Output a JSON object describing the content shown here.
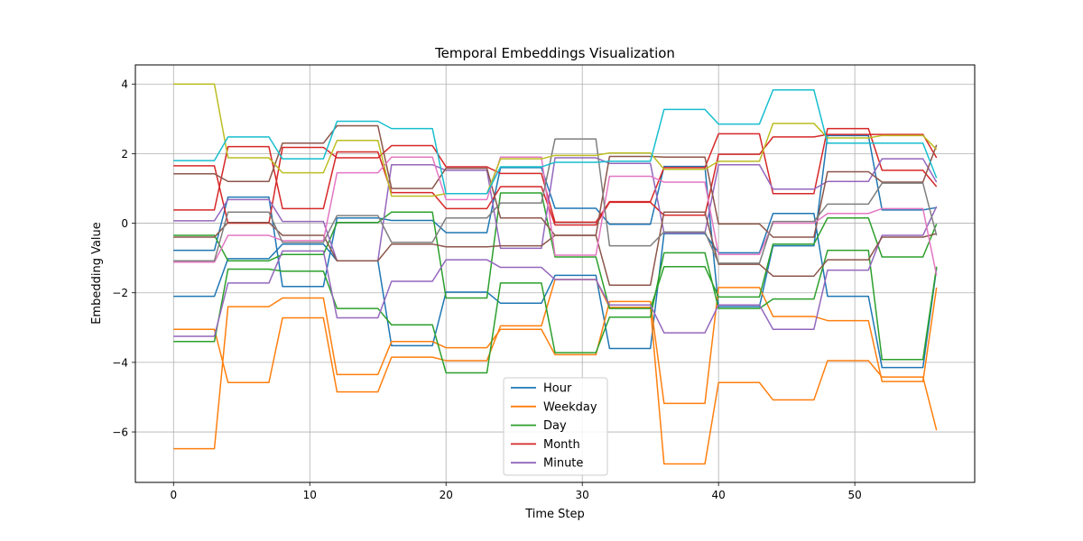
{
  "chart_data": {
    "type": "line",
    "title": "Temporal Embeddings Visualization",
    "xlabel": "Time Step",
    "ylabel": "Embedding Value",
    "xlim": [
      -2.8,
      58.8
    ],
    "ylim": [
      -7.45,
      4.55
    ],
    "xticks": [
      0,
      10,
      20,
      30,
      40,
      50
    ],
    "yticks": [
      -6,
      -4,
      -2,
      0,
      2,
      4
    ],
    "ytick_labels": [
      "−6",
      "−4",
      "−2",
      "0",
      "2",
      "4"
    ],
    "grid": true,
    "legend_position": "lower center",
    "x": [
      0,
      1,
      2,
      3,
      4,
      5,
      6,
      7,
      8,
      9,
      10,
      11,
      12,
      13,
      14,
      15,
      16,
      17,
      18,
      19,
      20,
      21,
      22,
      23,
      24,
      25,
      26,
      27,
      28,
      29,
      30,
      31,
      32,
      33,
      34,
      35,
      36,
      37,
      38,
      39,
      40,
      41,
      42,
      43,
      44,
      45,
      46,
      47,
      48,
      49,
      50,
      51,
      52,
      53,
      54,
      55,
      56
    ],
    "legend": [
      {
        "name": "Hour",
        "color": "#1f77b4"
      },
      {
        "name": "Weekday",
        "color": "#ff7f0e"
      },
      {
        "name": "Day",
        "color": "#2ca02c"
      },
      {
        "name": "Month",
        "color": "#d62728"
      },
      {
        "name": "Minute",
        "color": "#9467bd"
      }
    ],
    "series": [
      {
        "color": "#1f77b4",
        "values": [
          -0.78,
          -0.78,
          -0.78,
          -0.78,
          0.75,
          0.75,
          0.75,
          0.75,
          -1.82,
          -1.82,
          -1.82,
          -1.82,
          0.15,
          0.15,
          0.15,
          0.15,
          0.08,
          0.08,
          0.08,
          0.08,
          -0.27,
          -0.27,
          -0.27,
          -0.27,
          1.6,
          1.6,
          1.6,
          1.6,
          0.43,
          0.43,
          0.43,
          0.43,
          -0.03,
          -0.03,
          -0.03,
          -0.03,
          1.63,
          1.63,
          1.63,
          1.63,
          -2.4,
          -2.4,
          -2.4,
          -2.4,
          -0.65,
          -0.65,
          -0.65,
          -0.65,
          2.52,
          2.52,
          2.52,
          2.52,
          0.38,
          0.38,
          0.38,
          0.38,
          0.45
        ]
      },
      {
        "color": "#1f77b4",
        "values": [
          -2.1,
          -2.1,
          -2.1,
          -2.1,
          -1.02,
          -1.02,
          -1.02,
          -1.02,
          -0.6,
          -0.6,
          -0.6,
          -0.6,
          -1.08,
          -1.08,
          -1.08,
          -1.08,
          -3.52,
          -3.52,
          -3.52,
          -3.52,
          -1.98,
          -1.98,
          -1.98,
          -1.98,
          -2.3,
          -2.3,
          -2.3,
          -2.3,
          -1.5,
          -1.5,
          -1.5,
          -1.5,
          -3.6,
          -3.6,
          -3.6,
          -3.6,
          -0.3,
          -0.3,
          -0.3,
          -0.3,
          -0.85,
          -0.85,
          -0.85,
          -0.85,
          0.28,
          0.28,
          0.28,
          0.28,
          -2.1,
          -2.1,
          -2.1,
          -2.1,
          -4.15,
          -4.15,
          -4.15,
          -4.15,
          -1.3
        ]
      },
      {
        "color": "#ff7f0e",
        "values": [
          -6.48,
          -6.48,
          -6.48,
          -6.48,
          -2.4,
          -2.4,
          -2.4,
          -2.4,
          -2.15,
          -2.15,
          -2.15,
          -2.15,
          -4.35,
          -4.35,
          -4.35,
          -4.35,
          -3.4,
          -3.4,
          -3.4,
          -3.4,
          -3.58,
          -3.58,
          -3.58,
          -3.58,
          -3.05,
          -3.05,
          -3.05,
          -3.05,
          -3.78,
          -3.78,
          -3.78,
          -3.78,
          -2.25,
          -2.25,
          -2.25,
          -2.25,
          -5.18,
          -5.18,
          -5.18,
          -5.18,
          -1.85,
          -1.85,
          -1.85,
          -1.85,
          -2.68,
          -2.68,
          -2.68,
          -2.68,
          -2.8,
          -2.8,
          -2.8,
          -2.8,
          -4.55,
          -4.55,
          -4.55,
          -4.55,
          -1.85
        ]
      },
      {
        "color": "#ff7f0e",
        "values": [
          -3.05,
          -3.05,
          -3.05,
          -3.05,
          -4.58,
          -4.58,
          -4.58,
          -4.58,
          -2.72,
          -2.72,
          -2.72,
          -2.72,
          -4.85,
          -4.85,
          -4.85,
          -4.85,
          -3.85,
          -3.85,
          -3.85,
          -3.85,
          -3.95,
          -3.95,
          -3.95,
          -3.95,
          -2.95,
          -2.95,
          -2.95,
          -2.95,
          -1.62,
          -1.62,
          -1.62,
          -1.62,
          -2.42,
          -2.42,
          -2.42,
          -2.42,
          -6.92,
          -6.92,
          -6.92,
          -6.92,
          -4.58,
          -4.58,
          -4.58,
          -4.58,
          -5.08,
          -5.08,
          -5.08,
          -5.08,
          -3.95,
          -3.95,
          -3.95,
          -3.95,
          -4.42,
          -4.42,
          -4.42,
          -4.42,
          -5.95
        ]
      },
      {
        "color": "#2ca02c",
        "values": [
          -3.4,
          -3.4,
          -3.4,
          -3.4,
          -1.32,
          -1.32,
          -1.32,
          -1.32,
          -1.38,
          -1.38,
          -1.38,
          -1.38,
          -2.45,
          -2.45,
          -2.45,
          -2.45,
          -2.92,
          -2.92,
          -2.92,
          -2.92,
          -4.3,
          -4.3,
          -4.3,
          -4.3,
          -1.72,
          -1.72,
          -1.72,
          -1.72,
          -3.72,
          -3.72,
          -3.72,
          -3.72,
          -2.7,
          -2.7,
          -2.7,
          -2.7,
          -0.85,
          -0.85,
          -0.85,
          -0.85,
          -2.45,
          -2.45,
          -2.45,
          -2.45,
          -2.18,
          -2.18,
          -2.18,
          -2.18,
          -0.78,
          -0.78,
          -0.78,
          -0.78,
          -3.92,
          -3.92,
          -3.92,
          -3.92,
          -1.25
        ]
      },
      {
        "color": "#2ca02c",
        "values": [
          -0.35,
          -0.35,
          -0.35,
          -0.35,
          -1.08,
          -1.08,
          -1.08,
          -1.08,
          -0.9,
          -0.9,
          -0.9,
          -0.9,
          0.02,
          0.02,
          0.02,
          0.02,
          0.32,
          0.32,
          0.32,
          0.32,
          -2.15,
          -2.15,
          -2.15,
          -2.15,
          0.87,
          0.87,
          0.87,
          0.87,
          -0.97,
          -0.97,
          -0.97,
          -0.97,
          -2.45,
          -2.45,
          -2.45,
          -2.45,
          -1.25,
          -1.25,
          -1.25,
          -1.25,
          -2.12,
          -2.12,
          -2.12,
          -2.12,
          -0.6,
          -0.6,
          -0.6,
          -0.6,
          0.15,
          0.15,
          0.15,
          0.15,
          -0.97,
          -0.97,
          -0.97,
          -0.97,
          -0.02
        ]
      },
      {
        "color": "#d62728",
        "values": [
          1.65,
          1.65,
          1.65,
          1.65,
          0.0,
          0.0,
          0.0,
          0.0,
          2.18,
          2.18,
          2.18,
          2.18,
          1.88,
          1.88,
          1.88,
          1.88,
          2.23,
          2.23,
          2.23,
          2.23,
          1.62,
          1.62,
          1.62,
          1.62,
          1.43,
          1.43,
          1.43,
          1.43,
          0.03,
          0.03,
          0.03,
          0.03,
          0.62,
          0.62,
          0.62,
          0.62,
          1.6,
          1.6,
          1.6,
          1.6,
          2.57,
          2.57,
          2.57,
          2.57,
          0.85,
          0.85,
          0.85,
          0.85,
          2.72,
          2.72,
          2.72,
          2.72,
          1.52,
          1.52,
          1.52,
          1.52,
          1.05
        ]
      },
      {
        "color": "#d62728",
        "values": [
          0.38,
          0.38,
          0.38,
          0.38,
          2.2,
          2.2,
          2.2,
          2.2,
          0.42,
          0.42,
          0.42,
          0.42,
          2.05,
          2.05,
          2.05,
          2.05,
          0.88,
          0.88,
          0.88,
          0.88,
          0.42,
          0.42,
          0.42,
          0.42,
          1.05,
          1.05,
          1.05,
          1.05,
          -0.05,
          -0.05,
          -0.05,
          -0.05,
          0.6,
          0.6,
          0.6,
          0.6,
          0.23,
          0.23,
          0.23,
          0.23,
          1.98,
          1.98,
          1.98,
          1.98,
          2.48,
          2.48,
          2.48,
          2.48,
          2.55,
          2.55,
          2.55,
          2.55,
          2.55,
          2.55,
          2.55,
          2.55,
          1.88
        ]
      },
      {
        "color": "#9467bd",
        "values": [
          -3.25,
          -3.25,
          -3.25,
          -3.25,
          -1.72,
          -1.72,
          -1.72,
          -1.72,
          -0.8,
          -0.8,
          -0.8,
          -0.8,
          -2.72,
          -2.72,
          -2.72,
          -2.72,
          -1.67,
          -1.67,
          -1.67,
          -1.67,
          -1.05,
          -1.05,
          -1.05,
          -1.05,
          -1.27,
          -1.27,
          -1.27,
          -1.27,
          -1.62,
          -1.62,
          -1.62,
          -1.62,
          -2.35,
          -2.35,
          -2.35,
          -2.35,
          -3.15,
          -3.15,
          -3.15,
          -3.15,
          -2.35,
          -2.35,
          -2.35,
          -2.35,
          -3.05,
          -3.05,
          -3.05,
          -3.05,
          -1.35,
          -1.35,
          -1.35,
          -1.35,
          -0.35,
          -0.35,
          -0.35,
          -0.35,
          0.48
        ]
      },
      {
        "color": "#9467bd",
        "values": [
          0.07,
          0.07,
          0.07,
          0.07,
          0.68,
          0.68,
          0.68,
          0.68,
          0.05,
          0.05,
          0.05,
          0.05,
          -1.08,
          -1.08,
          -1.08,
          -1.08,
          1.68,
          1.68,
          1.68,
          1.68,
          1.52,
          1.52,
          1.52,
          1.52,
          -0.72,
          -0.72,
          -0.72,
          -0.72,
          1.88,
          1.88,
          1.88,
          1.88,
          1.72,
          1.72,
          1.72,
          1.72,
          -0.28,
          -0.28,
          -0.28,
          -0.28,
          1.68,
          1.68,
          1.68,
          1.68,
          0.98,
          0.98,
          0.98,
          0.98,
          1.2,
          1.2,
          1.2,
          1.2,
          1.85,
          1.85,
          1.85,
          1.85,
          1.18
        ]
      },
      {
        "color": "#8c564b",
        "values": [
          1.42,
          1.42,
          1.42,
          1.42,
          1.2,
          1.2,
          1.2,
          1.2,
          2.3,
          2.3,
          2.3,
          2.3,
          2.8,
          2.8,
          2.8,
          2.8,
          1.0,
          1.0,
          1.0,
          1.0,
          1.58,
          1.58,
          1.58,
          1.58,
          0.15,
          0.15,
          0.15,
          0.15,
          -0.35,
          -0.35,
          -0.35,
          -0.35,
          1.92,
          1.92,
          1.92,
          1.92,
          1.9,
          1.9,
          1.9,
          1.9,
          -0.02,
          -0.02,
          -0.02,
          -0.02,
          -0.4,
          -0.4,
          -0.4,
          -0.4,
          1.48,
          1.48,
          1.48,
          1.48,
          1.18,
          1.18,
          1.18,
          1.18,
          2.25
        ]
      },
      {
        "color": "#8c564b",
        "values": [
          -0.4,
          -0.4,
          -0.4,
          -0.4,
          0.02,
          0.02,
          0.02,
          0.02,
          -0.35,
          -0.35,
          -0.35,
          -0.35,
          -1.08,
          -1.08,
          -1.08,
          -1.08,
          -0.6,
          -0.6,
          -0.6,
          -0.6,
          -0.68,
          -0.68,
          -0.68,
          -0.68,
          -0.65,
          -0.65,
          -0.65,
          -0.65,
          -0.35,
          -0.35,
          -0.35,
          -0.35,
          -1.78,
          -1.78,
          -1.78,
          -1.78,
          0.32,
          0.32,
          0.32,
          0.32,
          -1.18,
          -1.18,
          -1.18,
          -1.18,
          -1.52,
          -1.52,
          -1.52,
          -1.52,
          -1.05,
          -1.05,
          -1.05,
          -1.05,
          -0.4,
          -0.4,
          -0.4,
          -0.4,
          -0.3
        ]
      },
      {
        "color": "#e377c2",
        "values": [
          -1.12,
          -1.12,
          -1.12,
          -1.12,
          -0.35,
          -0.35,
          -0.35,
          -0.35,
          -0.5,
          -0.5,
          -0.5,
          -0.5,
          1.45,
          1.45,
          1.45,
          1.45,
          1.9,
          1.9,
          1.9,
          1.9,
          0.68,
          0.68,
          0.68,
          0.68,
          1.9,
          1.9,
          1.9,
          1.9,
          -0.92,
          -0.92,
          -0.92,
          -0.92,
          1.35,
          1.35,
          1.35,
          1.35,
          1.18,
          1.18,
          1.18,
          1.18,
          -0.9,
          -0.9,
          -0.9,
          -0.9,
          0.0,
          0.0,
          0.0,
          0.0,
          0.28,
          0.28,
          0.28,
          0.28,
          0.42,
          0.42,
          0.42,
          0.42,
          -1.5
        ]
      },
      {
        "color": "#7f7f7f",
        "values": [
          -1.08,
          -1.08,
          -1.08,
          -1.08,
          0.32,
          0.32,
          0.32,
          0.32,
          -0.55,
          -0.55,
          -0.55,
          -0.55,
          0.22,
          0.22,
          0.22,
          0.22,
          -0.55,
          -0.55,
          -0.55,
          -0.55,
          0.15,
          0.15,
          0.15,
          0.15,
          0.58,
          0.58,
          0.58,
          0.58,
          2.42,
          2.42,
          2.42,
          2.42,
          -0.65,
          -0.65,
          -0.65,
          -0.65,
          -0.25,
          -0.25,
          -0.25,
          -0.25,
          -1.15,
          -1.15,
          -1.15,
          -1.15,
          0.05,
          0.05,
          0.05,
          0.05,
          0.55,
          0.55,
          0.55,
          0.55,
          1.15,
          1.15,
          1.15,
          1.15,
          -0.35
        ]
      },
      {
        "color": "#bcbd22",
        "values": [
          4.0,
          4.0,
          4.0,
          4.0,
          1.88,
          1.88,
          1.88,
          1.88,
          1.45,
          1.45,
          1.45,
          1.45,
          2.38,
          2.38,
          2.38,
          2.38,
          0.78,
          0.78,
          0.78,
          0.78,
          0.85,
          0.85,
          0.85,
          0.85,
          1.85,
          1.85,
          1.85,
          1.85,
          1.95,
          1.95,
          1.95,
          1.95,
          2.02,
          2.02,
          2.02,
          2.02,
          1.55,
          1.55,
          1.55,
          1.55,
          1.78,
          1.78,
          1.78,
          1.78,
          2.87,
          2.87,
          2.87,
          2.87,
          2.45,
          2.45,
          2.45,
          2.45,
          2.52,
          2.52,
          2.52,
          2.52,
          2.12
        ]
      },
      {
        "color": "#17becf",
        "values": [
          1.8,
          1.8,
          1.8,
          1.8,
          2.48,
          2.48,
          2.48,
          2.48,
          1.85,
          1.85,
          1.85,
          1.85,
          2.93,
          2.93,
          2.93,
          2.93,
          2.72,
          2.72,
          2.72,
          2.72,
          0.85,
          0.85,
          0.85,
          0.85,
          1.62,
          1.62,
          1.62,
          1.62,
          1.75,
          1.75,
          1.75,
          1.75,
          1.78,
          1.78,
          1.78,
          1.78,
          3.27,
          3.27,
          3.27,
          3.27,
          2.85,
          2.85,
          2.85,
          2.85,
          3.83,
          3.83,
          3.83,
          3.83,
          2.3,
          2.3,
          2.3,
          2.3,
          2.3,
          2.3,
          2.3,
          2.3,
          1.3
        ]
      }
    ]
  }
}
